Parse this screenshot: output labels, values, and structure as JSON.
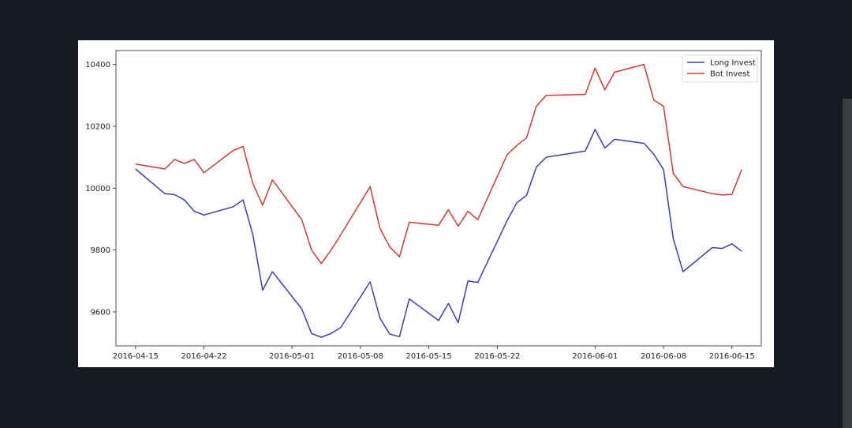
{
  "chart_data": {
    "type": "line",
    "title": "",
    "xlabel": "",
    "ylabel": "",
    "x_ticks": [
      "2016-04-15",
      "2016-04-22",
      "2016-05-01",
      "2016-05-08",
      "2016-05-15",
      "2016-05-22",
      "2016-06-01",
      "2016-06-08",
      "2016-06-15"
    ],
    "y_ticks": [
      9600,
      9800,
      10000,
      10200,
      10400
    ],
    "ylim": [
      9490,
      10445
    ],
    "xlim": [
      "2016-04-13",
      "2016-06-18"
    ],
    "grid": false,
    "legend_position": "top-right",
    "series": [
      {
        "name": "Long Invest",
        "color": "#3a3fb8",
        "x": [
          "2016-04-15",
          "2016-04-18",
          "2016-04-19",
          "2016-04-20",
          "2016-04-21",
          "2016-04-22",
          "2016-04-25",
          "2016-04-26",
          "2016-04-27",
          "2016-04-28",
          "2016-04-29",
          "2016-05-02",
          "2016-05-03",
          "2016-05-04",
          "2016-05-05",
          "2016-05-06",
          "2016-05-09",
          "2016-05-10",
          "2016-05-11",
          "2016-05-12",
          "2016-05-13",
          "2016-05-16",
          "2016-05-17",
          "2016-05-18",
          "2016-05-19",
          "2016-05-20",
          "2016-05-23",
          "2016-05-24",
          "2016-05-25",
          "2016-05-26",
          "2016-05-27",
          "2016-05-31",
          "2016-06-01",
          "2016-06-02",
          "2016-06-03",
          "2016-06-06",
          "2016-06-07",
          "2016-06-08",
          "2016-06-09",
          "2016-06-10",
          "2016-06-13",
          "2016-06-14",
          "2016-06-15",
          "2016-06-16",
          "2016-06-17"
        ],
        "values": [
          10062,
          9982,
          9979,
          9962,
          9925,
          9913,
          9940,
          9962,
          9850,
          9670,
          9730,
          9610,
          9530,
          9518,
          9530,
          9550,
          9697,
          9580,
          9528,
          9520,
          9642,
          9572,
          9627,
          9565,
          9700,
          9695,
          9895,
          9953,
          9977,
          10068,
          10100,
          10120,
          10190,
          10130,
          10158,
          10145,
          10110,
          10060,
          9836,
          9730,
          9808,
          9805,
          9820,
          9796,
          null
        ]
      },
      {
        "name": "Bot Invest",
        "color": "#d23b33",
        "x": [
          "2016-04-15",
          "2016-04-18",
          "2016-04-19",
          "2016-04-20",
          "2016-04-21",
          "2016-04-22",
          "2016-04-25",
          "2016-04-26",
          "2016-04-27",
          "2016-04-28",
          "2016-04-29",
          "2016-05-02",
          "2016-05-03",
          "2016-05-04",
          "2016-05-05",
          "2016-05-06",
          "2016-05-09",
          "2016-05-10",
          "2016-05-11",
          "2016-05-12",
          "2016-05-13",
          "2016-05-16",
          "2016-05-17",
          "2016-05-18",
          "2016-05-19",
          "2016-05-20",
          "2016-05-23",
          "2016-05-24",
          "2016-05-25",
          "2016-05-26",
          "2016-05-27",
          "2016-05-31",
          "2016-06-01",
          "2016-06-02",
          "2016-06-03",
          "2016-06-06",
          "2016-06-07",
          "2016-06-08",
          "2016-06-09",
          "2016-06-10",
          "2016-06-13",
          "2016-06-14",
          "2016-06-15",
          "2016-06-16",
          "2016-06-17"
        ],
        "values": [
          10078,
          10062,
          10093,
          10080,
          10093,
          10050,
          10122,
          10135,
          10015,
          9945,
          10027,
          9898,
          9800,
          9756,
          9800,
          9850,
          10005,
          9870,
          9810,
          9778,
          9890,
          9880,
          9930,
          9877,
          9925,
          9898,
          10108,
          10138,
          10163,
          10265,
          10300,
          10303,
          10388,
          10318,
          10375,
          10400,
          10285,
          10265,
          10048,
          10005,
          9982,
          9978,
          9980,
          10060,
          null
        ]
      }
    ]
  }
}
